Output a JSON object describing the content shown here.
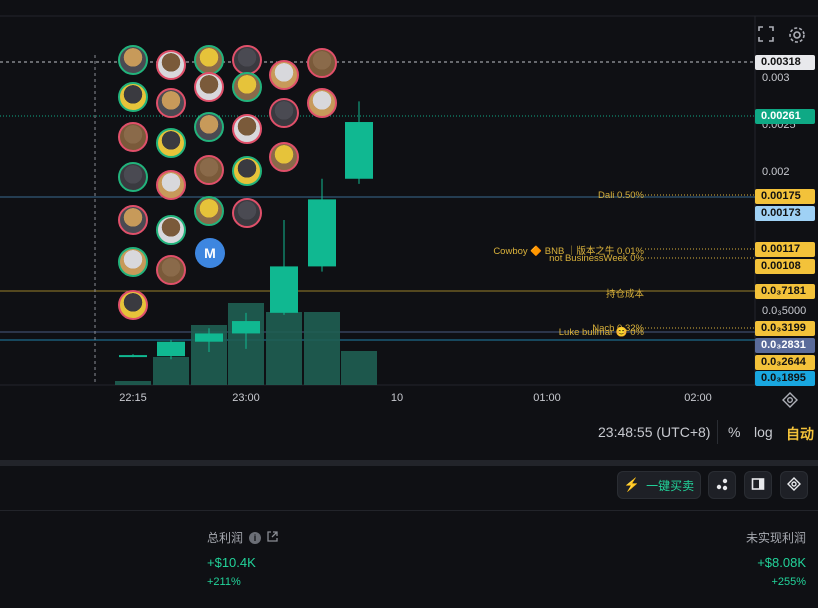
{
  "toolbar": {
    "fullscreen_icon": "fullscreen-icon",
    "settings_icon": "gear-icon"
  },
  "price_axis": {
    "ticks": [
      "0.003",
      "0.0025",
      "0.002",
      "0.0₃5000"
    ],
    "tags": [
      {
        "label": "0.00318",
        "bg": "#e8e9ec",
        "fg": "#111111"
      },
      {
        "label": "0.00261",
        "bg": "#0fa985",
        "fg": "#ffffff"
      },
      {
        "label": "0.00175",
        "bg": "#f3c23a",
        "fg": "#111111"
      },
      {
        "label": "0.00173",
        "bg": "#9fd1f5",
        "fg": "#111111"
      },
      {
        "label": "0.00117",
        "bg": "#f3c23a",
        "fg": "#111111"
      },
      {
        "label": "0.00108",
        "bg": "#f3c23a",
        "fg": "#111111"
      },
      {
        "label": "0.0₃7181",
        "bg": "#f3c23a",
        "fg": "#111111"
      },
      {
        "label": "0.0₃3199",
        "bg": "#f3c23a",
        "fg": "#111111"
      },
      {
        "label": "0.0₃2831",
        "bg": "#5a6b9a",
        "fg": "#ffffff"
      },
      {
        "label": "0.0₃2644",
        "bg": "#f3c23a",
        "fg": "#111111"
      },
      {
        "label": "0.0₃1895",
        "bg": "#19a7e0",
        "fg": "#111111"
      }
    ]
  },
  "annotations": [
    {
      "text": "Dali 0.50%",
      "color": "#d9b13b"
    },
    {
      "text": "Cowboy 🔶 BNB ｜版本之牛 0.01%",
      "color": "#d9b13b"
    },
    {
      "text": "not BusinessWeek 0%",
      "color": "#d9b13b"
    },
    {
      "text": "持仓成本",
      "color": "#d9b13b"
    },
    {
      "text": "Nach 0.32%",
      "color": "#d9b13b"
    },
    {
      "text": "Luke bullmar 😊 0%",
      "color": "#d9b13b"
    }
  ],
  "time_axis": {
    "ticks": [
      "22:15",
      "23:00",
      "10",
      "01:00",
      "02:00"
    ]
  },
  "chart_data": {
    "type": "candlestick",
    "candles": [
      {
        "open": 0.00028,
        "close": 0.00029,
        "high": 0.0003,
        "low": 0.00027
      },
      {
        "open": 0.00028,
        "close": 0.00042,
        "high": 0.00044,
        "low": 0.00025
      },
      {
        "open": 0.00042,
        "close": 0.0005,
        "high": 0.00055,
        "low": 0.00032
      },
      {
        "open": 0.0005,
        "close": 0.00062,
        "high": 0.0007,
        "low": 0.00035
      },
      {
        "open": 0.0007,
        "close": 0.00115,
        "high": 0.0016,
        "low": 0.00068
      },
      {
        "open": 0.00115,
        "close": 0.0018,
        "high": 0.002,
        "low": 0.0011
      },
      {
        "open": 0.002,
        "close": 0.00255,
        "high": 0.00275,
        "low": 0.00195
      }
    ],
    "volumes": [
      4,
      28,
      60,
      82,
      73,
      73,
      34
    ],
    "avatar_markers": 28
  },
  "status_bar": {
    "time": "23:48:55 (UTC+8)",
    "percent": "%",
    "log": "log",
    "auto": "自动"
  },
  "actions": {
    "one_click_trade": "一键买卖"
  },
  "stats": {
    "total_profit_label": "总利润",
    "total_profit_value": "+$10.4K",
    "total_profit_pct": "+211%",
    "unrealized_label": "未实现利润",
    "unrealized_value": "+$8.08K",
    "unrealized_pct": "+255%"
  }
}
